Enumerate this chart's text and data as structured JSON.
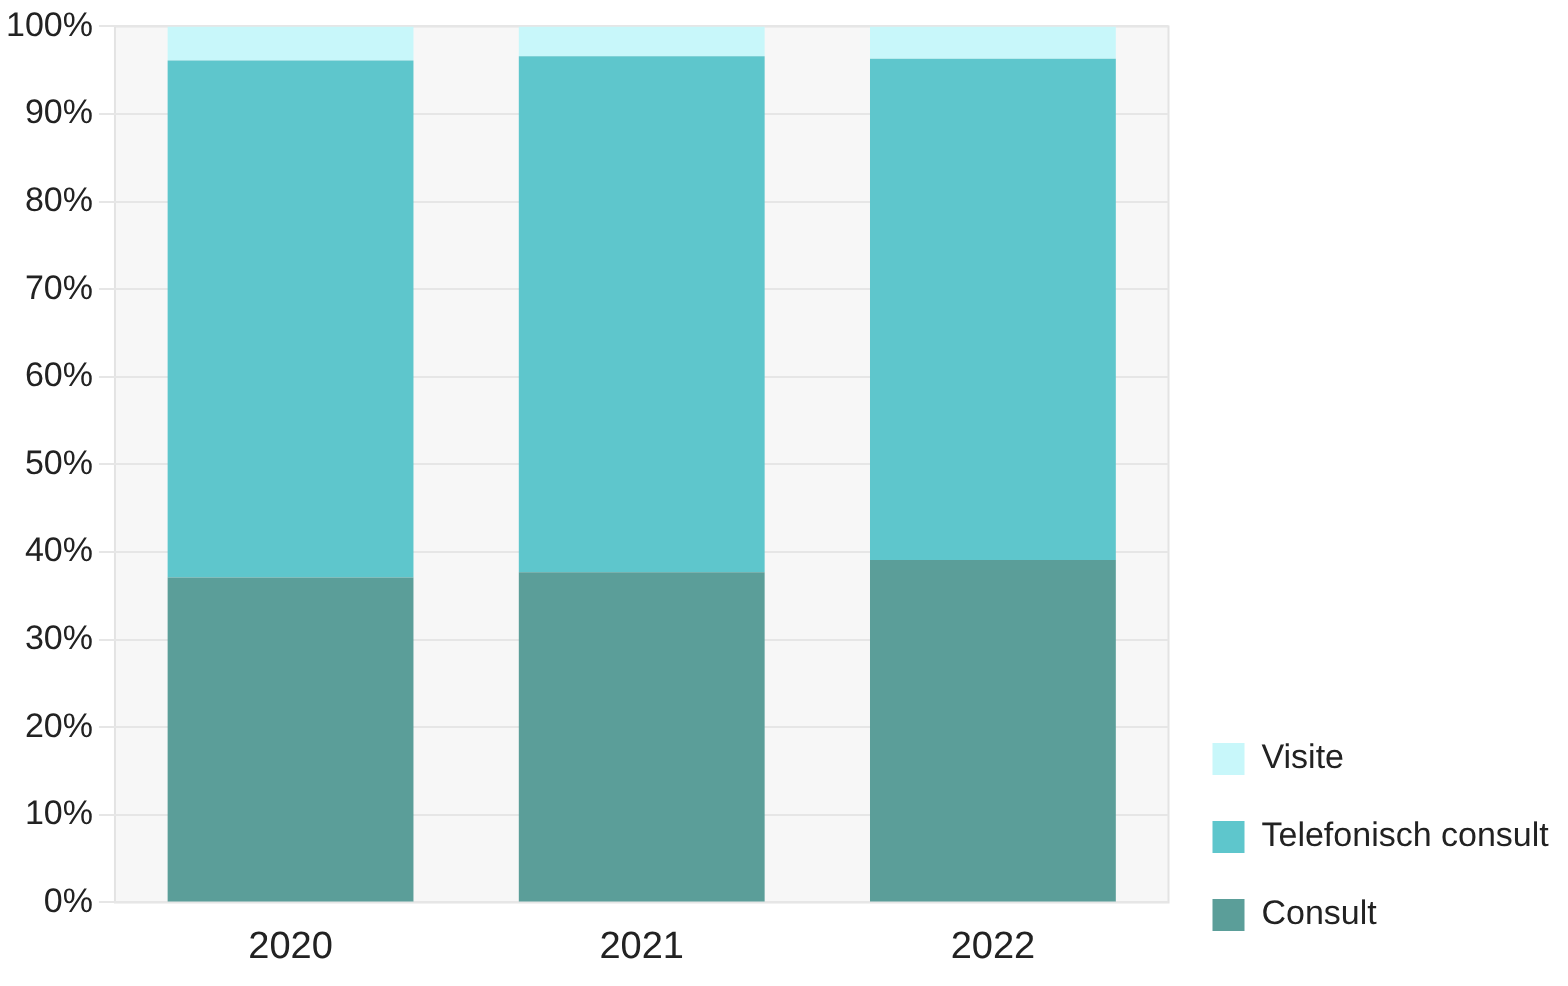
{
  "chart_data": {
    "type": "bar",
    "stacked": true,
    "categories": [
      "2020",
      "2021",
      "2022"
    ],
    "series": [
      {
        "name": "Consult",
        "color": "#5b9e99",
        "values": [
          37.1,
          37.7,
          39.1
        ]
      },
      {
        "name": "Telefonisch consult",
        "color": "#5ec6cc",
        "values": [
          59.0,
          58.9,
          57.2
        ]
      },
      {
        "name": "Visite",
        "color": "#c8f7fa",
        "values": [
          3.9,
          3.4,
          3.7
        ]
      }
    ],
    "ylim": [
      0,
      100
    ],
    "yticks": [
      {
        "value": 0,
        "label": "0%"
      },
      {
        "value": 10,
        "label": "10%"
      },
      {
        "value": 20,
        "label": "20%"
      },
      {
        "value": 30,
        "label": "30%"
      },
      {
        "value": 40,
        "label": "40%"
      },
      {
        "value": 50,
        "label": "50%"
      },
      {
        "value": 60,
        "label": "60%"
      },
      {
        "value": 70,
        "label": "70%"
      },
      {
        "value": 80,
        "label": "80%"
      },
      {
        "value": 90,
        "label": "90%"
      },
      {
        "value": 100,
        "label": "100%"
      }
    ],
    "grid": "y",
    "legend": "right"
  }
}
